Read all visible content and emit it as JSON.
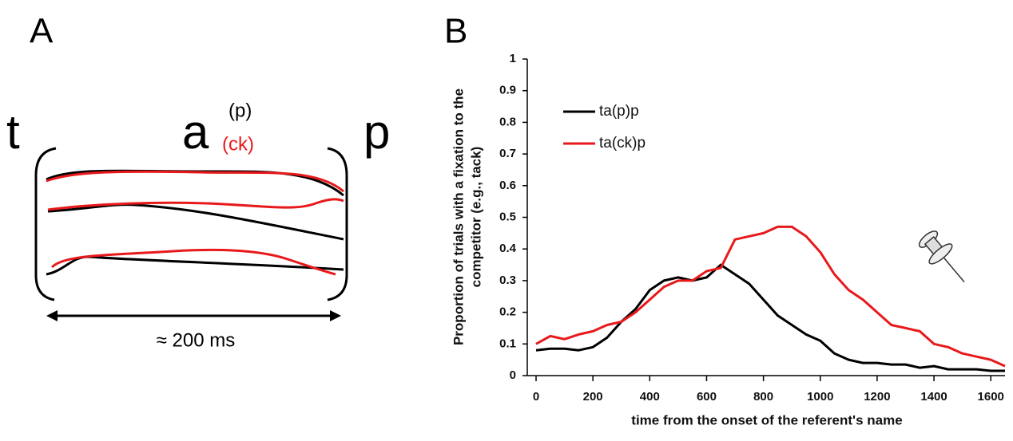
{
  "panel_a": {
    "label": "A",
    "segments": [
      "t",
      "a",
      "p"
    ],
    "variants": [
      {
        "text": "(p)",
        "color": "#000000"
      },
      {
        "text": "(ck)",
        "color": "#e8191b"
      }
    ],
    "duration": "≈ 200 ms"
  },
  "chart_data": {
    "type": "line",
    "label": "B",
    "xlabel": "time from the onset of the referent's name",
    "ylabel": [
      "Proportion of trials with a fixation to the",
      "competitor (e.g., tack)"
    ],
    "x": [
      0,
      50,
      100,
      150,
      200,
      250,
      300,
      350,
      400,
      450,
      500,
      550,
      600,
      650,
      700,
      750,
      800,
      850,
      900,
      950,
      1000,
      1050,
      1100,
      1150,
      1200,
      1250,
      1300,
      1350,
      1400,
      1450,
      1500,
      1550,
      1600,
      1650
    ],
    "series": [
      {
        "name": "ta(p)p",
        "color": "#000000",
        "values": [
          0.08,
          0.085,
          0.085,
          0.08,
          0.09,
          0.12,
          0.17,
          0.21,
          0.27,
          0.3,
          0.31,
          0.3,
          0.31,
          0.35,
          0.32,
          0.29,
          0.24,
          0.19,
          0.16,
          0.13,
          0.11,
          0.07,
          0.05,
          0.04,
          0.04,
          0.035,
          0.035,
          0.025,
          0.03,
          0.02,
          0.02,
          0.02,
          0.015,
          0.015
        ]
      },
      {
        "name": "ta(ck)p",
        "color": "#e8191b",
        "values": [
          0.1,
          0.125,
          0.115,
          0.13,
          0.14,
          0.16,
          0.17,
          0.2,
          0.24,
          0.28,
          0.3,
          0.3,
          0.33,
          0.34,
          0.43,
          0.44,
          0.45,
          0.47,
          0.47,
          0.44,
          0.39,
          0.32,
          0.27,
          0.24,
          0.2,
          0.16,
          0.15,
          0.14,
          0.1,
          0.09,
          0.07,
          0.06,
          0.05,
          0.03
        ]
      }
    ],
    "xlim": [
      0,
      1650
    ],
    "xticks": [
      0,
      200,
      400,
      600,
      800,
      1000,
      1200,
      1400,
      1600
    ],
    "ylim": [
      0,
      1
    ],
    "yticks": [
      0,
      0.1,
      0.2,
      0.3,
      0.4,
      0.5,
      0.6,
      0.7,
      0.8,
      0.9,
      1
    ],
    "legend": "upper left"
  }
}
